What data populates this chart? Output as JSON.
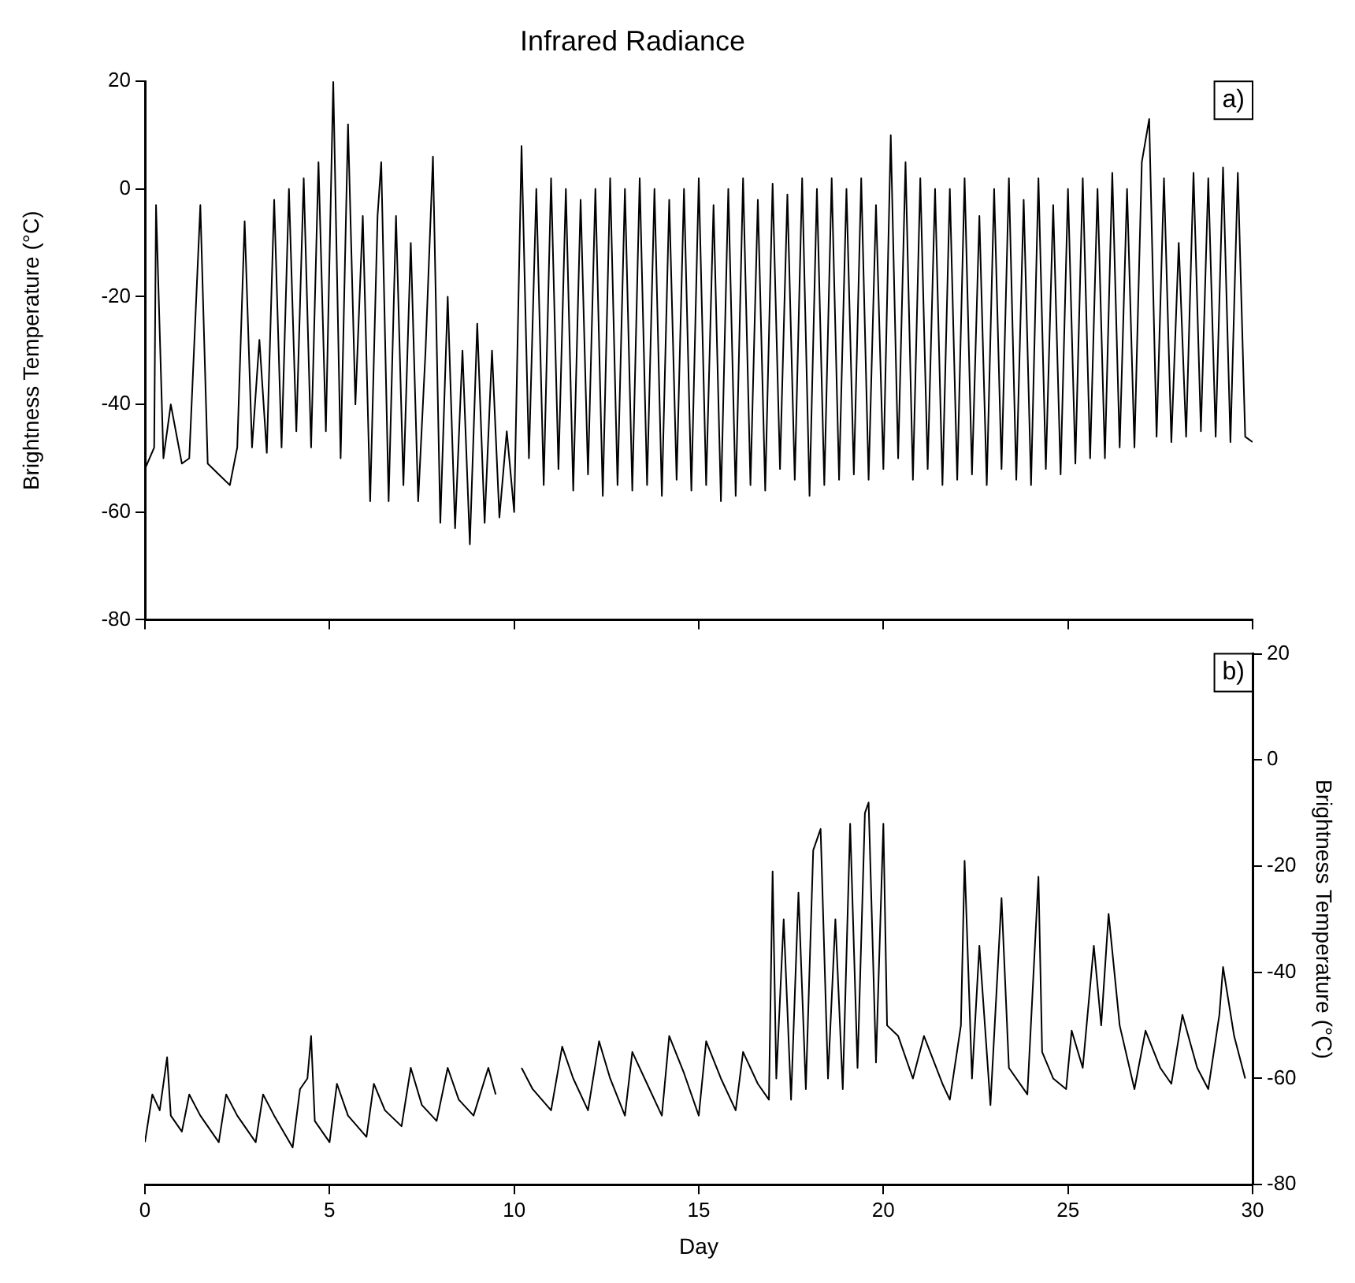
{
  "chart_data": [
    {
      "type": "line",
      "title": "Infrared Radiance",
      "ylabel": "Brightness Temperature (°C)",
      "annotations": [
        "a)"
      ],
      "xlim": [
        0,
        30
      ],
      "xticks": [
        0,
        5,
        10,
        15,
        20,
        25,
        30
      ],
      "ylim": [
        -80,
        20
      ],
      "yticks": [
        -80,
        -60,
        -40,
        -20,
        0,
        20
      ],
      "tick_labels": "y",
      "series": [
        {
          "color": "#000000",
          "x": [
            0,
            0.25,
            0.3,
            0.5,
            0.7,
            1.0,
            1.2,
            1.5,
            1.7,
            2.0,
            2.3,
            2.5,
            2.7,
            2.9,
            3.1,
            3.3,
            3.5,
            3.7,
            3.9,
            4.1,
            4.3,
            4.5,
            4.7,
            4.9,
            5.1,
            5.3,
            5.5,
            5.7,
            5.9,
            6.1,
            6.3,
            6.4,
            6.6,
            6.8,
            7.0,
            7.2,
            7.4,
            7.6,
            7.8,
            8.0,
            8.2,
            8.4,
            8.6,
            8.8,
            9.0,
            9.2,
            9.4,
            9.6,
            9.8,
            10.0,
            10.2,
            10.4,
            10.6,
            10.8,
            11.0,
            11.2,
            11.4,
            11.6,
            11.8,
            12.0,
            12.2,
            12.4,
            12.6,
            12.8,
            13.0,
            13.2,
            13.4,
            13.6,
            13.8,
            14.0,
            14.2,
            14.4,
            14.6,
            14.8,
            15.0,
            15.2,
            15.4,
            15.6,
            15.8,
            16.0,
            16.2,
            16.4,
            16.6,
            16.8,
            17.0,
            17.2,
            17.4,
            17.6,
            17.8,
            18.0,
            18.2,
            18.4,
            18.6,
            18.8,
            19.0,
            19.2,
            19.4,
            19.6,
            19.8,
            20.0,
            20.2,
            20.4,
            20.6,
            20.8,
            21.0,
            21.2,
            21.4,
            21.6,
            21.8,
            22.0,
            22.2,
            22.4,
            22.6,
            22.8,
            23.0,
            23.2,
            23.4,
            23.6,
            23.8,
            24.0,
            24.2,
            24.4,
            24.6,
            24.8,
            25.0,
            25.2,
            25.4,
            25.6,
            25.8,
            26.0,
            26.2,
            26.4,
            26.6,
            26.8,
            27.0,
            27.2,
            27.4,
            27.6,
            27.8,
            28.0,
            28.2,
            28.4,
            28.6,
            28.8,
            29.0,
            29.2,
            29.4,
            29.6,
            29.8,
            30.0
          ],
          "values": [
            -52,
            -48,
            -3,
            -50,
            -40,
            -51,
            -50,
            -3,
            -51,
            -53,
            -55,
            -48,
            -6,
            -48,
            -28,
            -49,
            -2,
            -48,
            0,
            -45,
            2,
            -48,
            5,
            -45,
            20,
            -50,
            12,
            -40,
            -5,
            -58,
            -5,
            5,
            -58,
            -5,
            -55,
            -10,
            -58,
            -30,
            6,
            -62,
            -20,
            -63,
            -30,
            -66,
            -25,
            -62,
            -30,
            -61,
            -45,
            -60,
            8,
            -50,
            0,
            -55,
            2,
            -52,
            0,
            -56,
            -2,
            -53,
            0,
            -57,
            2,
            -55,
            0,
            -56,
            2,
            -55,
            0,
            -57,
            -2,
            -54,
            0,
            -56,
            2,
            -55,
            -3,
            -58,
            0,
            -57,
            2,
            -55,
            -2,
            -56,
            1,
            -52,
            -1,
            -54,
            2,
            -57,
            0,
            -55,
            2,
            -54,
            0,
            -53,
            2,
            -54,
            -3,
            -52,
            10,
            -50,
            5,
            -54,
            2,
            -52,
            0,
            -55,
            0,
            -54,
            2,
            -53,
            -5,
            -55,
            0,
            -52,
            2,
            -54,
            -2,
            -55,
            2,
            -52,
            -3,
            -53,
            0,
            -51,
            2,
            -50,
            0,
            -50,
            3,
            -48,
            0,
            -48,
            5,
            13,
            -46,
            2,
            -47,
            -10,
            -46,
            3,
            -45,
            2,
            -46,
            4,
            -47,
            3,
            -46,
            -47
          ]
        }
      ]
    },
    {
      "type": "line",
      "xlabel": "Day",
      "y2label": "Brightness Temperature (°C)",
      "annotations": [
        "b)"
      ],
      "xlim": [
        0,
        30
      ],
      "xticks": [
        0,
        5,
        10,
        15,
        20,
        25,
        30
      ],
      "y2lim": [
        -80,
        20
      ],
      "y2ticks": [
        -80,
        -60,
        -40,
        -20,
        0,
        20
      ],
      "series": [
        {
          "color": "#000000",
          "axis": "y2",
          "x": [
            0,
            0.2,
            0.4,
            0.6,
            0.7,
            1.0,
            1.2,
            1.5,
            2.0,
            2.2,
            2.5,
            3.0,
            3.2,
            3.5,
            4.0,
            4.2,
            4.4,
            4.5,
            4.6,
            5.0,
            5.2,
            5.5,
            6.0,
            6.2,
            6.5,
            6.95,
            7.2,
            7.5,
            7.9,
            8.2,
            8.5,
            8.9,
            9.3,
            9.5,
            9.8,
            10.2,
            10.5,
            11.0,
            11.3,
            11.6,
            12.0,
            12.3,
            12.6,
            13.0,
            13.2,
            13.6,
            14.0,
            14.2,
            14.6,
            15.0,
            15.2,
            15.6,
            16.0,
            16.2,
            16.6,
            16.9,
            17.0,
            17.1,
            17.3,
            17.5,
            17.7,
            17.9,
            18.1,
            18.3,
            18.5,
            18.7,
            18.9,
            19.1,
            19.3,
            19.5,
            19.6,
            19.8,
            20.0,
            20.1,
            20.4,
            20.8,
            21.1,
            21.6,
            21.8,
            22.1,
            22.2,
            22.4,
            22.6,
            22.9,
            23.2,
            23.4,
            23.9,
            24.2,
            24.3,
            24.6,
            24.95,
            25.1,
            25.4,
            25.7,
            25.9,
            26.1,
            26.4,
            26.8,
            27.1,
            27.5,
            27.8,
            28.1,
            28.5,
            28.8,
            29.1,
            29.2,
            29.5,
            29.8
          ],
          "values": [
            -72,
            -63,
            -66,
            -56,
            -67,
            -70,
            -63,
            -67,
            -72,
            -63,
            -67,
            -72,
            -63,
            -67,
            -73,
            -62,
            -60,
            -52,
            -68,
            -72,
            -61,
            -67,
            -71,
            -61,
            -66,
            -69,
            -58,
            -65,
            -68,
            -58,
            -64,
            -67,
            -58,
            -63,
            null,
            -58,
            -62,
            -66,
            -54,
            -60,
            -66,
            -53,
            -60,
            -67,
            -55,
            -61,
            -67,
            -52,
            -59,
            -67,
            -53,
            -60,
            -66,
            -55,
            -61,
            -64,
            -21,
            -60,
            -30,
            -64,
            -25,
            -62,
            -17,
            -13,
            -60,
            -30,
            -62,
            -12,
            -58,
            -10,
            -8,
            -57,
            -12,
            -50,
            -52,
            -60,
            -52,
            -61,
            -64,
            -50,
            -19,
            -60,
            -35,
            -65,
            -26,
            -58,
            -63,
            -22,
            -55,
            -60,
            -62,
            -51,
            -58,
            -35,
            -50,
            -29,
            -50,
            -62,
            -51,
            -58,
            -61,
            -48,
            -58,
            -62,
            -48,
            -39,
            -52,
            -60
          ]
        }
      ]
    }
  ]
}
